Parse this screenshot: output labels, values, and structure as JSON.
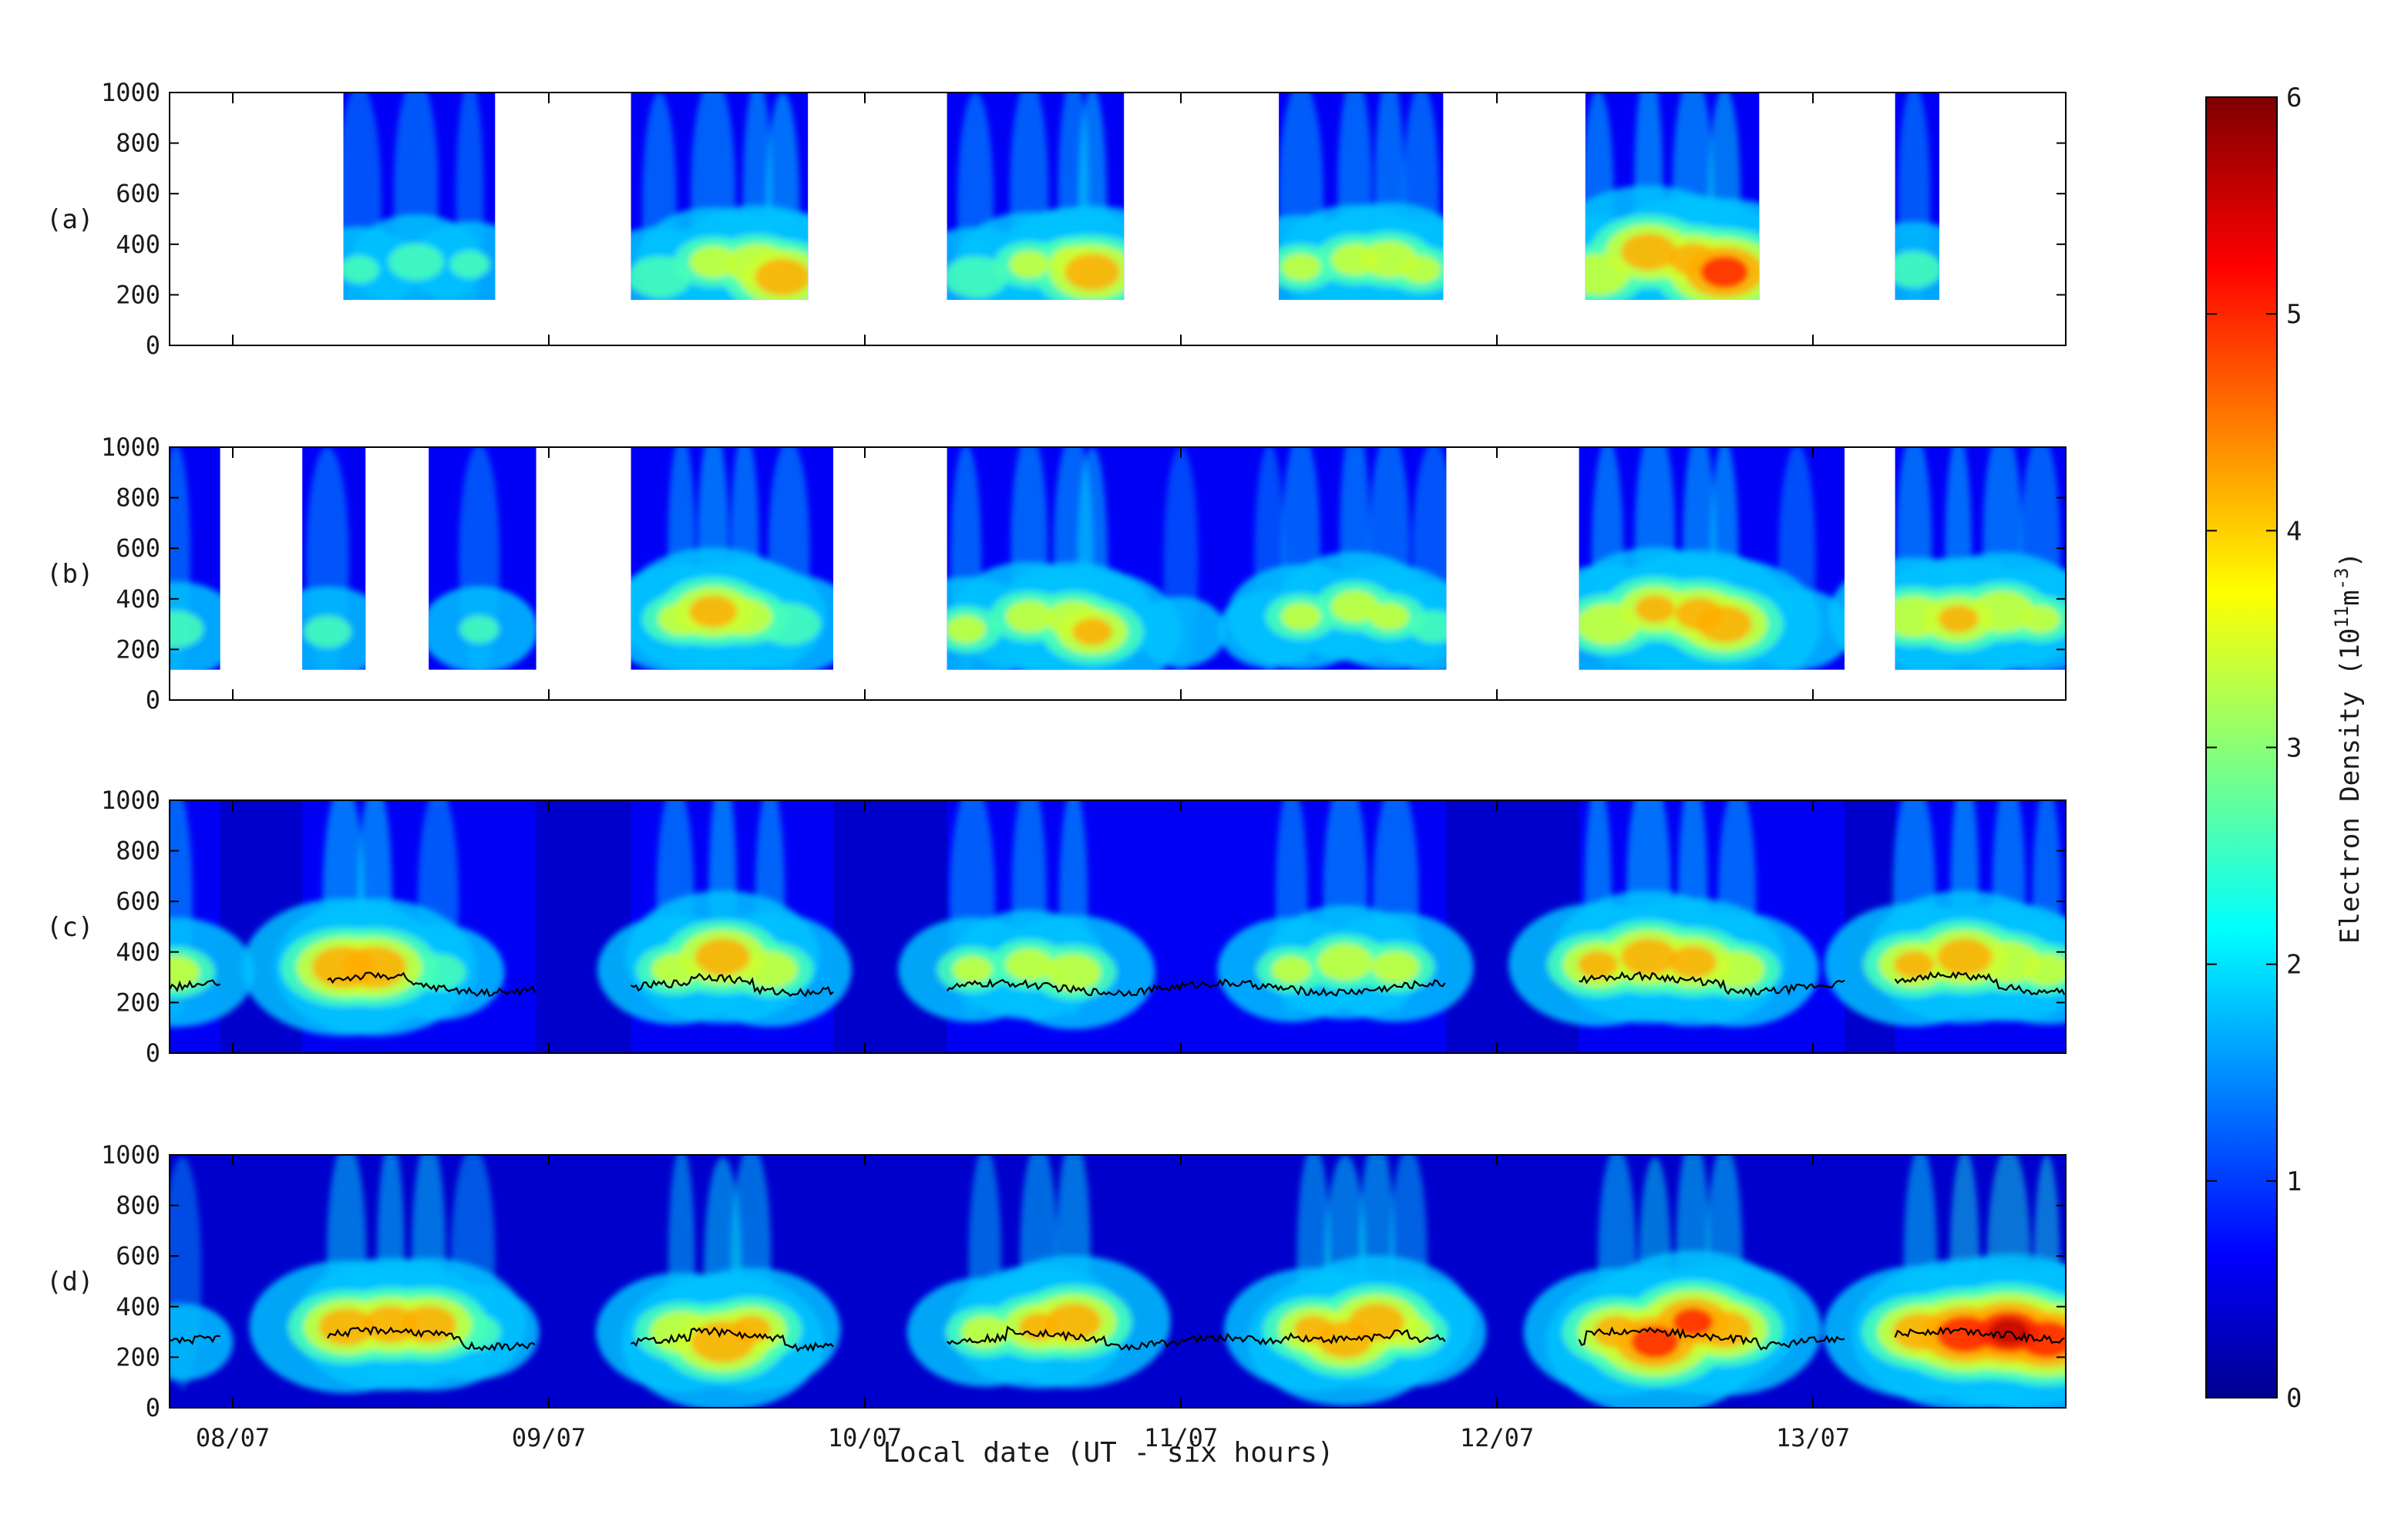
{
  "chart_data": {
    "type": "heatmap",
    "quantity": "Electron Density",
    "x_title": "Local date (UT - six hours)",
    "x_tick_labels": [
      "08/07",
      "09/07",
      "10/07",
      "11/07",
      "12/07",
      "13/07"
    ],
    "x_range_days": [
      7.8,
      13.8
    ],
    "y_ticks": [
      "0",
      "200",
      "400",
      "600",
      "800",
      "1000"
    ],
    "y_range": [
      0,
      1000
    ],
    "colorbar": {
      "ticks": [
        "0",
        "1",
        "2",
        "3",
        "4",
        "5",
        "6"
      ],
      "range": [
        0,
        6
      ],
      "label_main": "Electron Density (10",
      "label_sup1": "11",
      "label_mid": "m",
      "label_sup2": "-3",
      "label_end": ")",
      "colors": [
        "#00008f",
        "#0000ff",
        "#00ffff",
        "#ffff00",
        "#ff0000",
        "#7f0000"
      ]
    },
    "panels": [
      {
        "label": "(a)",
        "background": "none",
        "blocks": [
          [
            8.35,
            8.83
          ],
          [
            9.26,
            9.82
          ],
          [
            10.26,
            10.82
          ],
          [
            11.31,
            11.83
          ],
          [
            12.28,
            12.83
          ],
          [
            13.26,
            13.4
          ]
        ],
        "block_alt_range": [
          180,
          1000
        ],
        "peak_alt": 310,
        "blobs": [
          [
            8.4,
            300,
            2.6
          ],
          [
            8.58,
            330,
            3.0
          ],
          [
            8.75,
            320,
            2.6
          ],
          [
            9.35,
            270,
            3.2
          ],
          [
            9.52,
            330,
            3.6
          ],
          [
            9.66,
            320,
            4.0
          ],
          [
            9.74,
            270,
            4.6
          ],
          [
            10.35,
            270,
            3.2
          ],
          [
            10.52,
            320,
            3.4
          ],
          [
            10.66,
            330,
            3.6
          ],
          [
            10.72,
            290,
            4.6
          ],
          [
            11.38,
            310,
            3.4
          ],
          [
            11.55,
            340,
            3.6
          ],
          [
            11.66,
            340,
            3.8
          ],
          [
            11.76,
            300,
            3.4
          ],
          [
            12.32,
            280,
            4.0
          ],
          [
            12.48,
            370,
            4.6
          ],
          [
            12.62,
            340,
            4.4
          ],
          [
            12.72,
            290,
            5.2
          ],
          [
            13.32,
            300,
            3.0
          ]
        ],
        "hmf2_line": false
      },
      {
        "label": "(b)",
        "background": "none",
        "blocks": [
          [
            7.8,
            7.96
          ],
          [
            8.22,
            8.42
          ],
          [
            8.62,
            8.96
          ],
          [
            9.26,
            9.9
          ],
          [
            10.26,
            11.84
          ],
          [
            12.26,
            13.1
          ],
          [
            13.26,
            13.8
          ]
        ],
        "block_alt_range": [
          120,
          1000
        ],
        "peak_alt": 330,
        "blobs": [
          [
            7.82,
            280,
            3.0
          ],
          [
            8.3,
            270,
            2.8
          ],
          [
            8.78,
            280,
            2.6
          ],
          [
            9.42,
            320,
            3.6
          ],
          [
            9.52,
            350,
            4.4
          ],
          [
            9.62,
            330,
            3.8
          ],
          [
            9.76,
            300,
            3.2
          ],
          [
            10.32,
            280,
            3.4
          ],
          [
            10.52,
            330,
            3.6
          ],
          [
            10.66,
            320,
            3.8
          ],
          [
            10.72,
            270,
            4.2
          ],
          [
            11.0,
            270,
            1.9
          ],
          [
            11.28,
            280,
            2.2
          ],
          [
            11.38,
            330,
            3.4
          ],
          [
            11.55,
            370,
            3.6
          ],
          [
            11.66,
            330,
            3.4
          ],
          [
            11.8,
            290,
            2.8
          ],
          [
            12.35,
            300,
            4.0
          ],
          [
            12.5,
            360,
            4.2
          ],
          [
            12.64,
            340,
            4.4
          ],
          [
            12.72,
            300,
            4.6
          ],
          [
            12.95,
            280,
            2.4
          ],
          [
            13.32,
            330,
            4.0
          ],
          [
            13.46,
            320,
            4.2
          ],
          [
            13.6,
            350,
            4.0
          ],
          [
            13.72,
            320,
            3.4
          ]
        ],
        "hmf2_line": false
      },
      {
        "label": "(c)",
        "background": "full",
        "blocks": [
          [
            7.8,
            7.96
          ],
          [
            8.22,
            8.96
          ],
          [
            9.26,
            9.9
          ],
          [
            10.26,
            11.84
          ],
          [
            12.26,
            13.1
          ],
          [
            13.26,
            13.8
          ]
        ],
        "block_alt_range": [
          0,
          1000
        ],
        "peak_alt": 340,
        "blobs": [
          [
            7.82,
            320,
            3.6
          ],
          [
            8.35,
            340,
            4.8
          ],
          [
            8.45,
            340,
            4.8
          ],
          [
            8.65,
            320,
            3.0
          ],
          [
            9.4,
            330,
            3.6
          ],
          [
            9.55,
            380,
            4.6
          ],
          [
            9.7,
            330,
            3.8
          ],
          [
            10.34,
            330,
            3.4
          ],
          [
            10.52,
            350,
            3.6
          ],
          [
            10.66,
            320,
            3.8
          ],
          [
            11.35,
            330,
            3.4
          ],
          [
            11.52,
            360,
            3.8
          ],
          [
            11.68,
            340,
            3.6
          ],
          [
            12.32,
            350,
            4.2
          ],
          [
            12.48,
            380,
            4.6
          ],
          [
            12.62,
            360,
            4.4
          ],
          [
            12.76,
            330,
            3.8
          ],
          [
            13.32,
            350,
            4.2
          ],
          [
            13.48,
            380,
            4.6
          ],
          [
            13.62,
            360,
            4.0
          ],
          [
            13.74,
            330,
            3.6
          ]
        ],
        "hmf2_line": true
      },
      {
        "label": "(d)",
        "background": "full",
        "blocks": [],
        "block_alt_range": [
          0,
          1000
        ],
        "peak_alt": 320,
        "blobs": [
          [
            7.84,
            260,
            2.2
          ],
          [
            8.36,
            320,
            4.6
          ],
          [
            8.5,
            330,
            4.6
          ],
          [
            8.62,
            330,
            4.6
          ],
          [
            8.76,
            300,
            3.0
          ],
          [
            9.42,
            300,
            4.0
          ],
          [
            9.55,
            260,
            4.8
          ],
          [
            9.64,
            310,
            4.2
          ],
          [
            10.38,
            300,
            3.6
          ],
          [
            10.55,
            320,
            4.2
          ],
          [
            10.66,
            340,
            4.6
          ],
          [
            11.42,
            310,
            4.2
          ],
          [
            11.52,
            270,
            4.6
          ],
          [
            11.62,
            340,
            4.6
          ],
          [
            11.72,
            300,
            3.6
          ],
          [
            12.38,
            300,
            4.4
          ],
          [
            12.5,
            260,
            5.2
          ],
          [
            12.62,
            340,
            5.0
          ],
          [
            12.72,
            310,
            4.6
          ],
          [
            13.34,
            300,
            4.6
          ],
          [
            13.48,
            290,
            5.4
          ],
          [
            13.62,
            300,
            5.6
          ],
          [
            13.74,
            270,
            5.4
          ]
        ],
        "hmf2_line": true
      }
    ],
    "hmf2_segments": [
      [
        7.8,
        7.96
      ],
      [
        8.3,
        8.96
      ],
      [
        9.26,
        9.9
      ],
      [
        10.26,
        11.84
      ],
      [
        12.26,
        13.1
      ],
      [
        13.26,
        13.8
      ]
    ],
    "hmf2_alt_range": [
      180,
      340
    ]
  }
}
